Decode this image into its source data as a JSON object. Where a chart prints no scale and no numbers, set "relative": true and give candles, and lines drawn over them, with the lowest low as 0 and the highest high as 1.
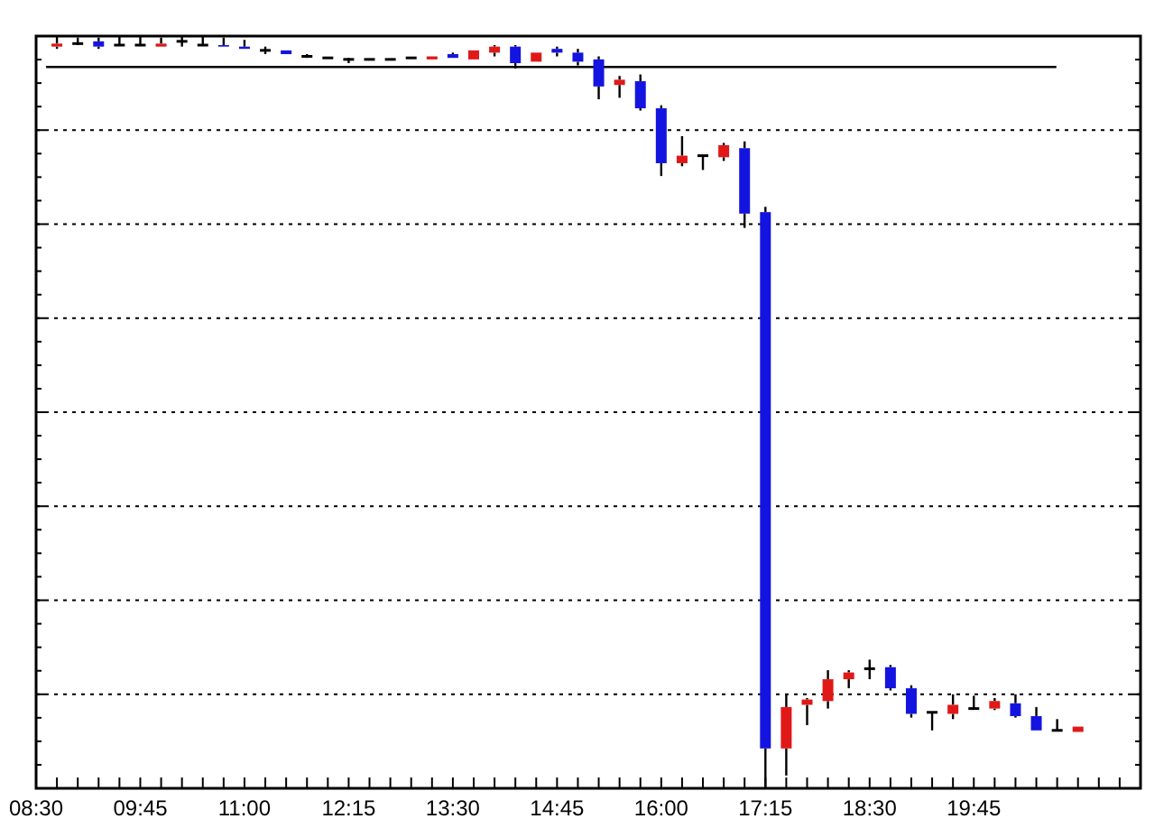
{
  "chart_data": {
    "type": "candlestick",
    "relative": true,
    "grid": "y",
    "x": [
      8.75,
      9,
      9.25,
      9.5,
      9.75,
      10,
      10.25,
      10.5,
      10.75,
      11,
      11.25,
      11.5,
      11.75,
      12,
      12.25,
      12.5,
      12.75,
      13,
      13.25,
      13.5,
      13.75,
      14,
      14.25,
      14.5,
      14.75,
      15,
      15.25,
      15.5,
      15.75,
      16,
      16.25,
      16.5,
      16.75,
      17,
      17.25,
      17.5,
      17.75,
      18,
      18.25,
      18.5,
      18.75,
      19,
      19.25,
      19.5,
      19.75,
      20,
      20.25,
      20.5,
      20.75,
      21
    ],
    "ohlc": [
      [
        0.986,
        1,
        0.983,
        0.99
      ],
      [
        0.99,
        0.998,
        0.988,
        0.99
      ],
      [
        0.993,
        0.998,
        0.983,
        0.986
      ],
      [
        0.988,
        1,
        0.988,
        0.988
      ],
      [
        0.988,
        1,
        0.988,
        0.988
      ],
      [
        0.986,
        0.998,
        0.986,
        0.99
      ],
      [
        0.993,
        1,
        0.986,
        0.993
      ],
      [
        0.988,
        1,
        0.988,
        0.988
      ],
      [
        0.988,
        0.998,
        0.986,
        0.986
      ],
      [
        0.986,
        0.995,
        0.983,
        0.983
      ],
      [
        0.981,
        0.986,
        0.976,
        0.981
      ],
      [
        0.981,
        0.981,
        0.976,
        0.976
      ],
      [
        0.973,
        0.976,
        0.971,
        0.973
      ],
      [
        0.971,
        0.971,
        0.971,
        0.971
      ],
      [
        0.969,
        0.971,
        0.964,
        0.969
      ],
      [
        0.969,
        0.969,
        0.969,
        0.969
      ],
      [
        0.969,
        0.969,
        0.969,
        0.969
      ],
      [
        0.971,
        0.971,
        0.971,
        0.971
      ],
      [
        0.969,
        0.973,
        0.969,
        0.973
      ],
      [
        0.976,
        0.978,
        0.971,
        0.971
      ],
      [
        0.969,
        0.981,
        0.969,
        0.981
      ],
      [
        0.978,
        0.988,
        0.973,
        0.986
      ],
      [
        0.986,
        0.988,
        0.957,
        0.964
      ],
      [
        0.966,
        0.978,
        0.966,
        0.978
      ],
      [
        0.983,
        0.986,
        0.973,
        0.978
      ],
      [
        0.978,
        0.983,
        0.961,
        0.966
      ],
      [
        0.969,
        0.973,
        0.916,
        0.933
      ],
      [
        0.935,
        0.947,
        0.918,
        0.942
      ],
      [
        0.94,
        0.949,
        0.901,
        0.904
      ],
      [
        0.904,
        0.908,
        0.814,
        0.831
      ],
      [
        0.831,
        0.867,
        0.827,
        0.841
      ],
      [
        0.841,
        0.841,
        0.822,
        0.841
      ],
      [
        0.839,
        0.858,
        0.834,
        0.855
      ],
      [
        0.851,
        0.86,
        0.745,
        0.764
      ],
      [
        0.766,
        0.773,
        0,
        0.053
      ],
      [
        0.053,
        0.125,
        0.017,
        0.108
      ],
      [
        0.111,
        0.12,
        0.084,
        0.118
      ],
      [
        0.116,
        0.157,
        0.106,
        0.145
      ],
      [
        0.145,
        0.157,
        0.133,
        0.154
      ],
      [
        0.159,
        0.171,
        0.145,
        0.159
      ],
      [
        0.161,
        0.164,
        0.13,
        0.133
      ],
      [
        0.133,
        0.137,
        0.094,
        0.099
      ],
      [
        0.101,
        0.101,
        0.077,
        0.101
      ],
      [
        0.099,
        0.125,
        0.092,
        0.111
      ],
      [
        0.106,
        0.123,
        0.106,
        0.106
      ],
      [
        0.106,
        0.12,
        0.104,
        0.116
      ],
      [
        0.113,
        0.125,
        0.094,
        0.096
      ],
      [
        0.096,
        0.108,
        0.077,
        0.077
      ],
      [
        0.077,
        0.092,
        0.077,
        0.077
      ],
      [
        0.075,
        0.082,
        0.075,
        0.082
      ]
    ],
    "colors": [
      "#e01818",
      "#000000",
      "#1414e0",
      "#000000",
      "#000000",
      "#e01818",
      "#000000",
      "#000000",
      "#1414e0",
      "#1414e0",
      "#000000",
      "#1414e0",
      "#000000",
      "#000000",
      "#000000",
      "#000000",
      "#000000",
      "#000000",
      "#e01818",
      "#1414e0",
      "#e01818",
      "#e01818",
      "#1414e0",
      "#e01818",
      "#1414e0",
      "#1414e0",
      "#1414e0",
      "#e01818",
      "#1414e0",
      "#1414e0",
      "#e01818",
      "#000000",
      "#e01818",
      "#1414e0",
      "#1414e0",
      "#e01818",
      "#e01818",
      "#e01818",
      "#e01818",
      "#000000",
      "#1414e0",
      "#1414e0",
      "#000000",
      "#e01818",
      "#000000",
      "#e01818",
      "#1414e0",
      "#1414e0",
      "#000000",
      "#e01818"
    ],
    "ref_lines": [
      {
        "axis": "y",
        "value": 0.959,
        "color": "#000000",
        "line_style": "solid"
      }
    ],
    "xlim": [
      8.5,
      21.75
    ],
    "xticks": [
      {
        "value": 8.5,
        "label": "08:30"
      },
      {
        "value": 8.75,
        "label": null
      },
      {
        "value": 9,
        "label": null
      },
      {
        "value": 9.25,
        "label": null
      },
      {
        "value": 9.5,
        "label": null
      },
      {
        "value": 9.75,
        "label": "09:45"
      },
      {
        "value": 10,
        "label": null
      },
      {
        "value": 10.25,
        "label": null
      },
      {
        "value": 10.5,
        "label": null
      },
      {
        "value": 10.75,
        "label": null
      },
      {
        "value": 11,
        "label": "11:00"
      },
      {
        "value": 11.25,
        "label": null
      },
      {
        "value": 11.5,
        "label": null
      },
      {
        "value": 11.75,
        "label": null
      },
      {
        "value": 12,
        "label": null
      },
      {
        "value": 12.25,
        "label": "12:15"
      },
      {
        "value": 12.5,
        "label": null
      },
      {
        "value": 12.75,
        "label": null
      },
      {
        "value": 13,
        "label": null
      },
      {
        "value": 13.25,
        "label": null
      },
      {
        "value": 13.5,
        "label": "13:30"
      },
      {
        "value": 13.75,
        "label": null
      },
      {
        "value": 14,
        "label": null
      },
      {
        "value": 14.25,
        "label": null
      },
      {
        "value": 14.5,
        "label": null
      },
      {
        "value": 14.75,
        "label": "14:45"
      },
      {
        "value": 15,
        "label": null
      },
      {
        "value": 15.25,
        "label": null
      },
      {
        "value": 15.5,
        "label": null
      },
      {
        "value": 15.75,
        "label": null
      },
      {
        "value": 16,
        "label": "16:00"
      },
      {
        "value": 16.25,
        "label": null
      },
      {
        "value": 16.5,
        "label": null
      },
      {
        "value": 16.75,
        "label": null
      },
      {
        "value": 17,
        "label": null
      },
      {
        "value": 17.25,
        "label": "17:15"
      },
      {
        "value": 17.5,
        "label": null
      },
      {
        "value": 17.75,
        "label": null
      },
      {
        "value": 18,
        "label": null
      },
      {
        "value": 18.25,
        "label": null
      },
      {
        "value": 18.5,
        "label": "18:30"
      },
      {
        "value": 18.75,
        "label": null
      },
      {
        "value": 19,
        "label": null
      },
      {
        "value": 19.25,
        "label": null
      },
      {
        "value": 19.5,
        "label": null
      },
      {
        "value": 19.75,
        "label": "19:45"
      },
      {
        "value": 20,
        "label": null
      },
      {
        "value": 20.25,
        "label": null
      },
      {
        "value": 20.5,
        "label": null
      },
      {
        "value": 20.75,
        "label": null
      },
      {
        "value": 21,
        "label": null
      },
      {
        "value": 21.25,
        "label": null
      },
      {
        "value": 21.5,
        "label": null
      }
    ]
  }
}
